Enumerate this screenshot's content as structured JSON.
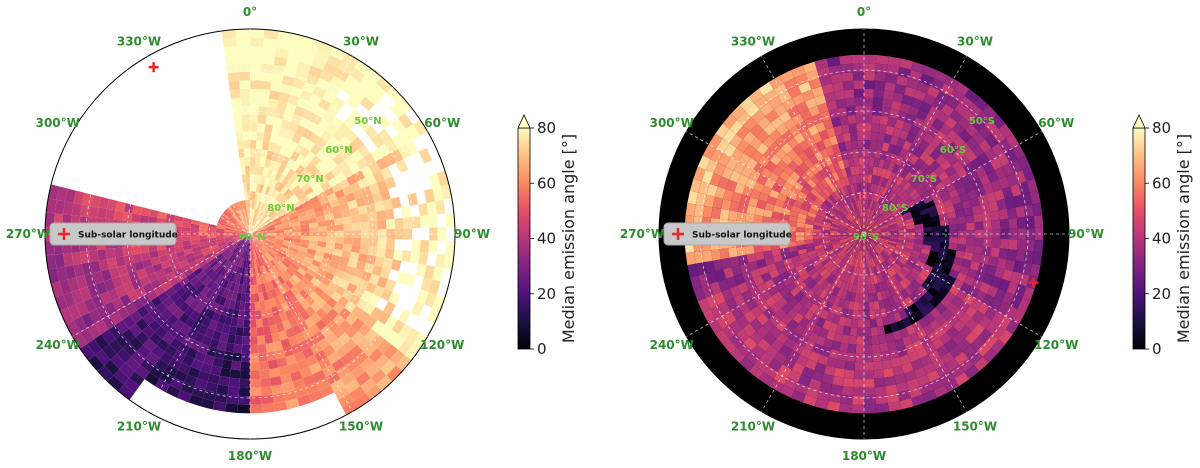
{
  "colors": {
    "label_green": "#2e8b2e",
    "lat_green": "#6ccb3a",
    "marker_red": "#e8262a",
    "legend_bg": "#c8c8c8",
    "disk_dark": "#000000"
  },
  "chart_data": [
    {
      "type": "heatmap",
      "projection": "polar",
      "hemisphere": "north",
      "title": "",
      "longitude_labels": [
        "0°",
        "30°W",
        "60°W",
        "90°W",
        "120°W",
        "150°W",
        "180°W",
        "210°W",
        "240°W",
        "270°W",
        "300°W",
        "330°W"
      ],
      "latitude_labels": [
        "50°N",
        "60°N",
        "70°N",
        "80°N",
        "90°N"
      ],
      "latitude_rings": [
        50,
        60,
        70,
        80
      ],
      "outer_latitude": 40,
      "legend": {
        "label": "Sub-solar longitude",
        "placement": "left"
      },
      "subsolar_marker": {
        "longitude_w": 330,
        "latitude": 43
      },
      "colorbar": {
        "label": "Median emission angle [°]",
        "min": 0,
        "max": 80,
        "ticks": [
          0,
          20,
          40,
          60,
          80
        ],
        "extend": "max"
      }
    },
    {
      "type": "heatmap",
      "projection": "polar",
      "hemisphere": "south",
      "title": "",
      "longitude_labels": [
        "0°",
        "30°W",
        "60°W",
        "90°W",
        "120°W",
        "150°W",
        "180°W",
        "210°W",
        "240°W",
        "270°W",
        "300°W",
        "330°W"
      ],
      "latitude_labels": [
        "50°S",
        "60°S",
        "70°S",
        "80°S",
        "90°S"
      ],
      "latitude_rings": [
        50,
        60,
        70,
        80
      ],
      "outer_latitude": 40,
      "legend": {
        "label": "Sub-solar longitude",
        "placement": "left"
      },
      "subsolar_marker": {
        "longitude_w": 106,
        "latitude": -47
      },
      "colorbar": {
        "label": "Median emission angle [°]",
        "min": 0,
        "max": 80,
        "ticks": [
          0,
          20,
          40,
          60,
          80
        ],
        "extend": "max"
      }
    }
  ]
}
